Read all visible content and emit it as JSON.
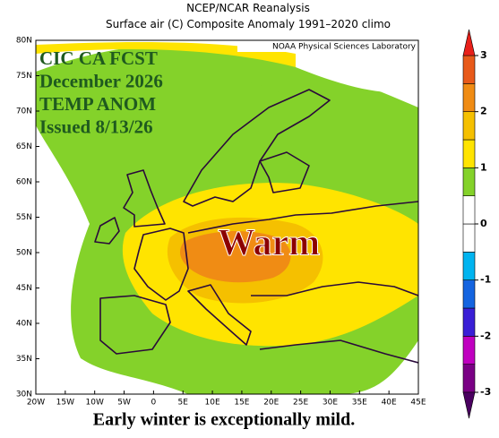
{
  "header": {
    "title": "NCEP/NCAR Reanalysis",
    "subtitle": "Surface air (C) Composite Anomaly 1991–2020 climo"
  },
  "map": {
    "credit": "NOAA Physical Sciences Laboratory",
    "overlay_lines": [
      "CIC CA FCST",
      "December 2026",
      "TEMP ANOM",
      "Issued 8/13/26"
    ],
    "label": "Warm",
    "lat_labels": [
      "30N",
      "35N",
      "40N",
      "45N",
      "50N",
      "55N",
      "60N",
      "65N",
      "70N",
      "75N",
      "80N"
    ],
    "lon_labels": [
      "20W",
      "15W",
      "10W",
      "5W",
      "0",
      "5E",
      "10E",
      "15E",
      "20E",
      "25E",
      "30E",
      "35E",
      "40E",
      "45E"
    ]
  },
  "colorbar": {
    "ticks": [
      -3,
      -2,
      -1,
      0,
      1,
      2,
      3
    ],
    "colors": [
      "#7a0085",
      "#c000c0",
      "#3a1fd6",
      "#1464e0",
      "#00b4f0",
      "#ffffff",
      "#ffffff",
      "#84d22a",
      "#ffe400",
      "#f5c000",
      "#f08c14",
      "#e85a1a"
    ],
    "low_color": "#4a0060",
    "high_color": "#e8201a"
  },
  "caption": "Early winter is exceptionally mild."
}
